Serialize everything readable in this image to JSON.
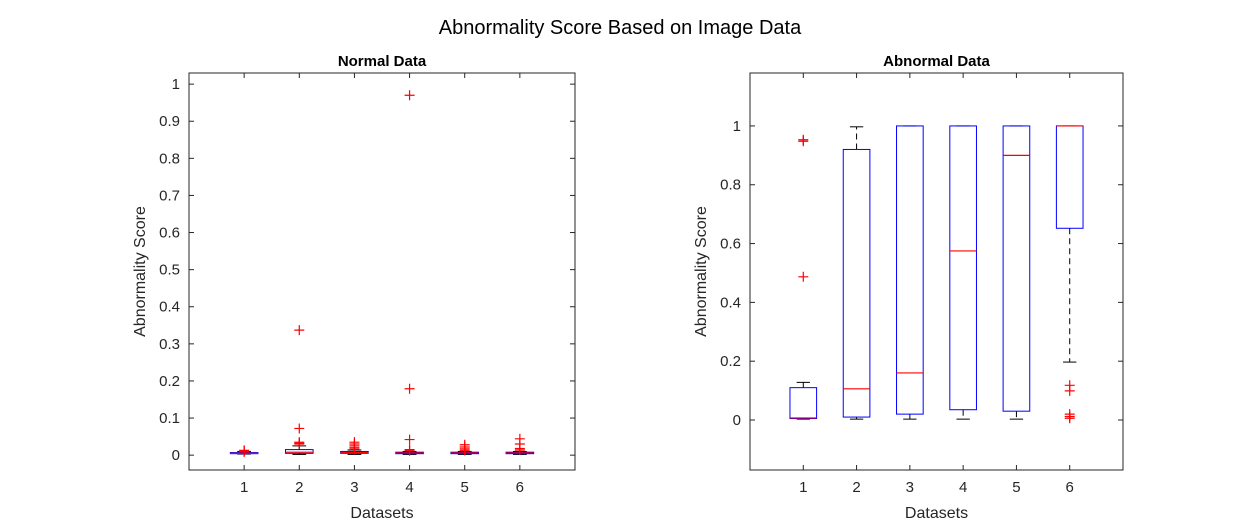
{
  "figure_title": "Abnormality Score Based on Image Data",
  "colors": {
    "box": "#0000ff",
    "median": "#ff0000",
    "outlier": "#ff0000",
    "whisker": "#000000",
    "axis": "#262626"
  },
  "chart_data": [
    {
      "type": "boxplot",
      "title": "Normal Data",
      "xlabel": "Datasets",
      "ylabel": "Abnormality Score",
      "categories": [
        "1",
        "2",
        "3",
        "4",
        "5",
        "6"
      ],
      "ylim": [
        -0.04,
        1.03
      ],
      "yticks": [
        0,
        0.1,
        0.2,
        0.3,
        0.4,
        0.5,
        0.6,
        0.7,
        0.8,
        0.9,
        1
      ],
      "ytick_labels": [
        "0",
        "0.1",
        "0.2",
        "0.3",
        "0.4",
        "0.5",
        "0.6",
        "0.7",
        "0.8",
        "0.9",
        "1"
      ],
      "boxes": [
        {
          "whisker_low": 0.003,
          "q1": 0.004,
          "median": 0.005,
          "q3": 0.007,
          "whisker_high": 0.01,
          "outliers": [
            0.009,
            0.011,
            0.013
          ]
        },
        {
          "whisker_low": 0.002,
          "q1": 0.005,
          "median": 0.008,
          "q3": 0.015,
          "whisker_high": 0.025,
          "outliers": [
            0.03,
            0.032,
            0.035,
            0.072,
            0.337
          ]
        },
        {
          "whisker_low": 0.002,
          "q1": 0.005,
          "median": 0.007,
          "q3": 0.01,
          "whisker_high": 0.014,
          "outliers": [
            0.016,
            0.02,
            0.025,
            0.03,
            0.035
          ]
        },
        {
          "whisker_low": 0.002,
          "q1": 0.004,
          "median": 0.006,
          "q3": 0.008,
          "whisker_high": 0.01,
          "outliers": [
            0.012,
            0.015,
            0.042,
            0.179,
            0.97
          ]
        },
        {
          "whisker_low": 0.002,
          "q1": 0.004,
          "median": 0.006,
          "q3": 0.008,
          "whisker_high": 0.01,
          "outliers": [
            0.013,
            0.017,
            0.022,
            0.028
          ]
        },
        {
          "whisker_low": 0.002,
          "q1": 0.004,
          "median": 0.006,
          "q3": 0.008,
          "whisker_high": 0.01,
          "outliers": [
            0.014,
            0.018,
            0.03,
            0.044
          ]
        }
      ]
    },
    {
      "type": "boxplot",
      "title": "Abnormal Data",
      "xlabel": "Datasets",
      "ylabel": "Abnormality Score",
      "categories": [
        "1",
        "2",
        "3",
        "4",
        "5",
        "6"
      ],
      "ylim": [
        -0.17,
        1.18
      ],
      "yticks": [
        0,
        0.2,
        0.4,
        0.6,
        0.8,
        1
      ],
      "ytick_labels": [
        "0",
        "0.2",
        "0.4",
        "0.6",
        "0.8",
        "1"
      ],
      "boxes": [
        {
          "whisker_low": 0.003,
          "q1": 0.005,
          "median": 0.007,
          "q3": 0.11,
          "whisker_high": 0.128,
          "outliers": [
            0.487,
            0.948,
            0.953
          ]
        },
        {
          "whisker_low": 0.003,
          "q1": 0.01,
          "median": 0.106,
          "q3": 0.92,
          "whisker_high": 0.997,
          "outliers": []
        },
        {
          "whisker_low": 0.003,
          "q1": 0.02,
          "median": 0.16,
          "q3": 1.0,
          "whisker_high": 1.0,
          "outliers": []
        },
        {
          "whisker_low": 0.003,
          "q1": 0.035,
          "median": 0.575,
          "q3": 1.0,
          "whisker_high": 1.0,
          "outliers": []
        },
        {
          "whisker_low": 0.003,
          "q1": 0.03,
          "median": 0.9,
          "q3": 1.0,
          "whisker_high": 1.0,
          "outliers": []
        },
        {
          "whisker_low": 0.197,
          "q1": 0.652,
          "median": 1.0,
          "q3": 1.0,
          "whisker_high": 1.0,
          "outliers": [
            0.006,
            0.012,
            0.02,
            0.099,
            0.118
          ]
        }
      ]
    }
  ]
}
